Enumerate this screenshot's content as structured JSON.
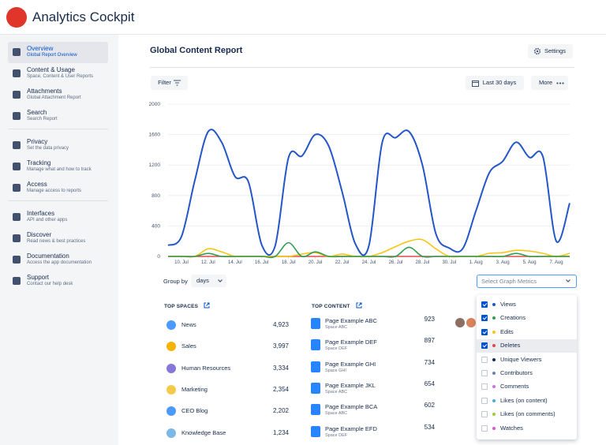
{
  "app": {
    "title": "Analytics Cockpit"
  },
  "sidebar": [
    {
      "title": "Overview",
      "subtitle": "Global Report Overview",
      "active": true
    },
    {
      "title": "Content & Usage",
      "subtitle": "Space, Content & User Reports"
    },
    {
      "title": "Attachments",
      "subtitle": "Global Attachment Report"
    },
    {
      "title": "Search",
      "subtitle": "Search Report",
      "divider_after": true
    },
    {
      "title": "Privacy",
      "subtitle": "Set the data privacy"
    },
    {
      "title": "Tracking",
      "subtitle": "Manage what and how to track"
    },
    {
      "title": "Access",
      "subtitle": "Manage access to reports",
      "divider_after": true
    },
    {
      "title": "Interfaces",
      "subtitle": "API and other apps"
    },
    {
      "title": "Discover",
      "subtitle": "Read news & best practices"
    },
    {
      "title": "Documentation",
      "subtitle": "Access the app documentation"
    },
    {
      "title": "Support",
      "subtitle": "Contact our help desk"
    }
  ],
  "page": {
    "title": "Global Content Report",
    "settings": "Settings",
    "filter": "Filter",
    "date_range": "Last 30 days",
    "more": "More"
  },
  "chart_data": {
    "type": "line",
    "categories": [
      null,
      "10. Jul",
      null,
      "12. Jul",
      null,
      "14. Jul",
      null,
      "16. Jul",
      null,
      "18. Jul",
      null,
      "20. Jul",
      null,
      "22. Jul",
      null,
      "24. Jul",
      null,
      "26. Jul",
      null,
      "28. Jul",
      null,
      "30. Jul",
      null,
      "1. Aug",
      null,
      "3. Aug",
      null,
      "5. Aug",
      null,
      "7. Aug",
      null
    ],
    "series": [
      {
        "name": "Views",
        "color": "#2356c9",
        "values": [
          145,
          260,
          1000,
          1640,
          1500,
          1050,
          980,
          150,
          140,
          1300,
          1320,
          1600,
          1450,
          850,
          160,
          140,
          1500,
          1560,
          1640,
          1200,
          300,
          110,
          100,
          600,
          1100,
          1250,
          1500,
          1300,
          1310,
          200,
          700
        ]
      },
      {
        "name": "Creations",
        "color": "#2e9e4f",
        "values": [
          0,
          0,
          0,
          40,
          0,
          0,
          0,
          0,
          0,
          180,
          0,
          60,
          0,
          0,
          0,
          0,
          0,
          0,
          120,
          0,
          0,
          0,
          0,
          0,
          0,
          0,
          40,
          0,
          0,
          0,
          0
        ]
      },
      {
        "name": "Edits",
        "color": "#f5c518",
        "values": [
          0,
          0,
          0,
          100,
          60,
          0,
          0,
          0,
          0,
          0,
          30,
          50,
          0,
          30,
          0,
          0,
          50,
          130,
          200,
          220,
          100,
          0,
          0,
          0,
          40,
          50,
          80,
          70,
          40,
          0,
          40
        ]
      },
      {
        "name": "Deletes",
        "color": "#e5484d",
        "values": [
          0,
          0,
          0,
          0,
          0,
          0,
          0,
          0,
          0,
          0,
          0,
          0,
          0,
          0,
          0,
          0,
          0,
          0,
          0,
          0,
          0,
          0,
          0,
          0,
          0,
          0,
          0,
          0,
          0,
          0,
          0
        ]
      }
    ],
    "ylim": [
      0,
      2000
    ],
    "yticks": [
      0,
      400,
      800,
      1200,
      1600,
      2000
    ],
    "grid": true
  },
  "group_by": {
    "label": "Group by",
    "value": "days"
  },
  "metrics": {
    "placeholder": "Select Graph Metrics",
    "highlighted": 3,
    "extra_options": [
      {
        "label": "Unique Viewers",
        "color": "#172b4d"
      },
      {
        "label": "Contributors",
        "color": "#6b82a8"
      },
      {
        "label": "Comments",
        "color": "#c774e8"
      },
      {
        "label": "Likes (on content)",
        "color": "#4dabd1"
      },
      {
        "label": "Likes (on comments)",
        "color": "#9acd32"
      },
      {
        "label": "Watches",
        "color": "#d65ad1"
      }
    ]
  },
  "top_spaces": {
    "title": "TOP SPACES",
    "rows": [
      {
        "name": "News",
        "count": "4,923",
        "color": "#4c9aff"
      },
      {
        "name": "Sales",
        "count": "3,997",
        "color": "#f5b400"
      },
      {
        "name": "Human Resources",
        "count": "3,334",
        "color": "#8777d9"
      },
      {
        "name": "Marketing",
        "count": "2,354",
        "color": "#f7c948"
      },
      {
        "name": "CEO Blog",
        "count": "2,202",
        "color": "#4c9aff"
      },
      {
        "name": "Knowledge Base",
        "count": "1,234",
        "color": "#79b8e8"
      }
    ]
  },
  "top_content": {
    "title": "TOP CONTENT",
    "rows": [
      {
        "name": "Page Example ABC",
        "space": "Space ABC",
        "count": "923"
      },
      {
        "name": "Page Example DEF",
        "space": "Space DEF",
        "count": "897"
      },
      {
        "name": "Page Example GHI",
        "space": "Space GHI",
        "count": "734"
      },
      {
        "name": "Page Example JKL",
        "space": "Space ABC",
        "count": "654"
      },
      {
        "name": "Page Example BCA",
        "space": "Space ABC",
        "count": "602"
      },
      {
        "name": "Page Example EFD",
        "space": "Space DEF",
        "count": "534"
      }
    ]
  }
}
